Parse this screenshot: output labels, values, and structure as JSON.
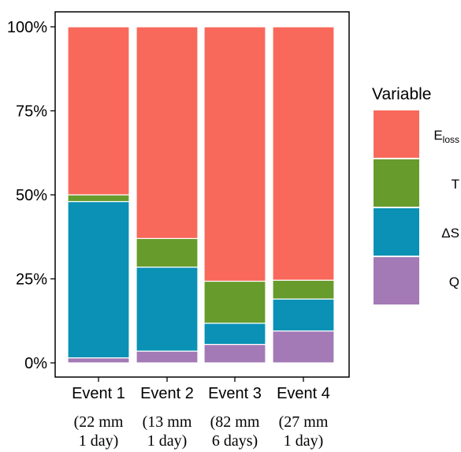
{
  "chart_data": {
    "type": "bar",
    "stacked": true,
    "percent": true,
    "categories": [
      "Event 1",
      "Event 2",
      "Event 3",
      "Event 4"
    ],
    "category_notes": [
      [
        "(22 mm",
        "1 day)"
      ],
      [
        "(13 mm",
        "1 day)"
      ],
      [
        "(82 mm",
        "6 days)"
      ],
      [
        "(27 mm",
        "1 day)"
      ]
    ],
    "series": [
      {
        "name": "Q",
        "color": "#a379b6",
        "values": [
          1.5,
          3.5,
          5.5,
          9.5
        ]
      },
      {
        "name": "ΔS",
        "color": "#0a91b5",
        "values": [
          46.5,
          25.0,
          6.3,
          9.5
        ]
      },
      {
        "name": "T",
        "color": "#679b2c",
        "values": [
          2.0,
          8.5,
          12.5,
          5.6
        ]
      },
      {
        "name": "E",
        "name_sub": "loss",
        "color": "#f8695b",
        "values": [
          50.0,
          63.0,
          75.7,
          75.4
        ]
      }
    ],
    "yticks": [
      "0%",
      "25%",
      "50%",
      "75%",
      "100%"
    ],
    "ylim": [
      0,
      100
    ],
    "legend": {
      "title": "Variable",
      "position": "right",
      "order": [
        "E",
        "T",
        "ΔS",
        "Q"
      ]
    }
  }
}
